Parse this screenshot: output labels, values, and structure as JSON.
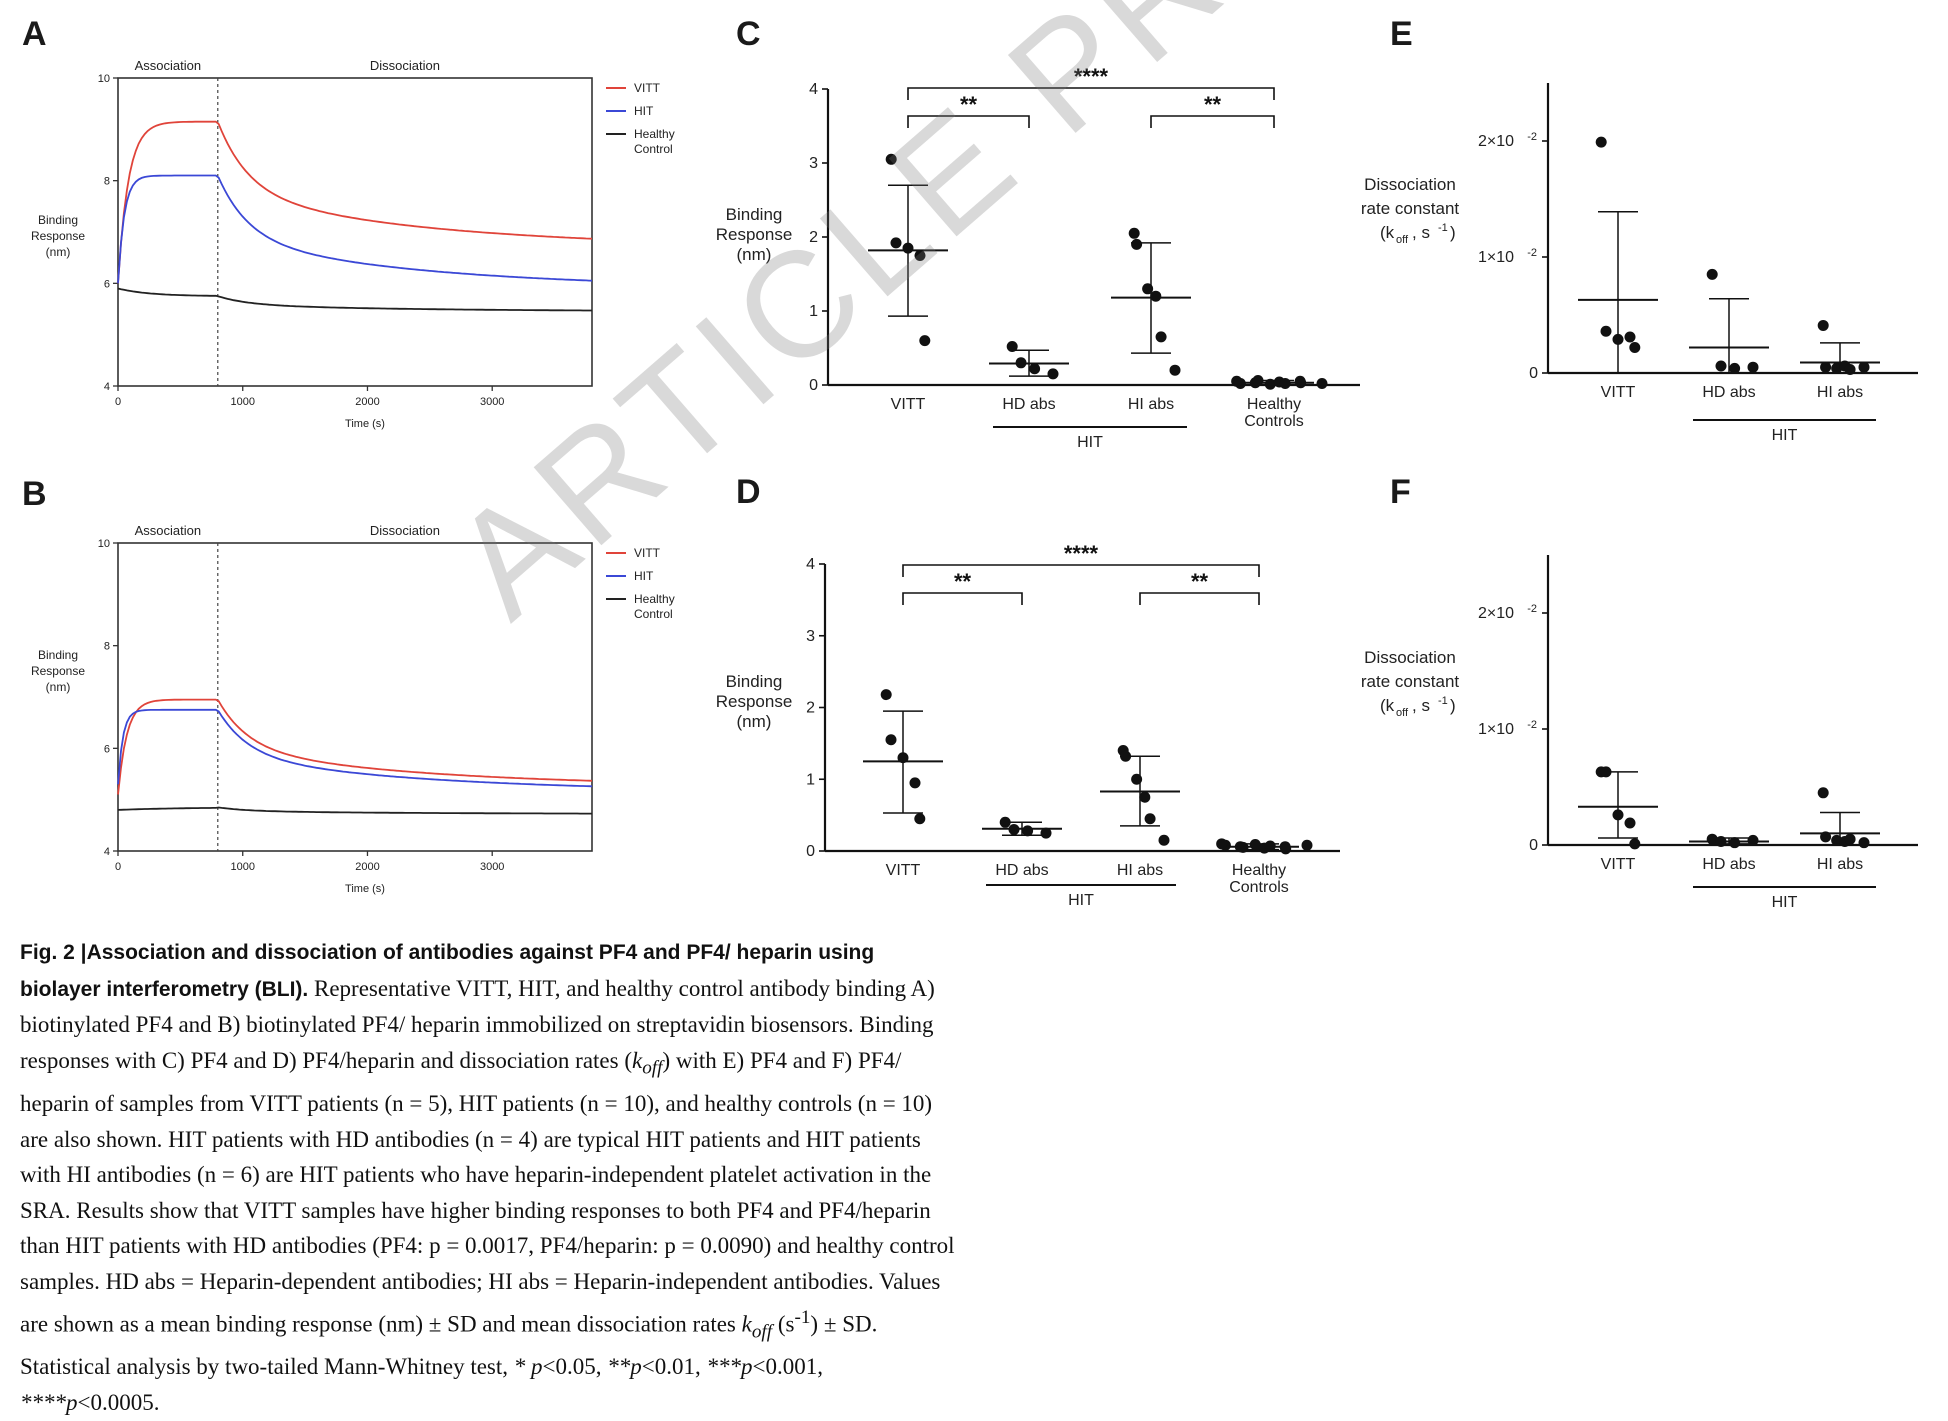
{
  "figure": {
    "panel_labels": [
      "A",
      "B",
      "C",
      "D",
      "E",
      "F"
    ],
    "caption": {
      "fig_label": "Fig. 2 |",
      "title": "Association and dissociation of antibodies against PF4 and PF4/ heparin using biolayer interferometry (BLI).",
      "part1": " Representative VITT, HIT, and healthy control antibody binding A) biotinylated PF4 and B) biotinylated PF4/ heparin immobilized on streptavidin biosensors. Binding responses with C) PF4 and D) PF4/heparin and dissociation rates (",
      "koff_k": "k",
      "koff_sub": "off",
      "part2": ") with E) PF4 and F) PF4/ heparin of samples from VITT patients (n = 5), HIT patients (n = 10), and healthy controls (n = 10) are also shown. HIT patients with HD antibodies (n = 4) are typical HIT patients and HIT patients with HI antibodies (n = 6) are HIT patients who have heparin-independent platelet activation in the SRA. Results show that VITT samples have higher binding responses to both PF4 and PF4/heparin than HIT patients with HD antibodies (PF4: p = 0.0017, PF4/heparin: p = 0.0090) and healthy control samples. HD abs = Heparin-dependent antibodies; HI abs = Heparin-independent antibodies. Values are shown as a mean binding response (nm) ± SD and mean dissociation rates ",
      "part3_unit": " (s",
      "part3_sup": "-1",
      "part3_end": ") ± SD. Statistical analysis by two-tailed Mann-Whitney test, ",
      "sig1": "* p",
      "sig1v": "<0.05, ",
      "sig2": "**p",
      "sig2v": "<0.01, ",
      "sig3": "***p",
      "sig3v": "<0.001, ",
      "sig4": "****p",
      "sig4v": "<0.0005."
    },
    "watermark": "ARTICLE PREVIEW"
  },
  "chart_data": [
    {
      "panel": "A",
      "type": "line",
      "phases": [
        "Association",
        "Dissociation"
      ],
      "xlabel": "Time (s)",
      "ylabel": [
        "Binding",
        "Response",
        "(nm)"
      ],
      "xlim": [
        0,
        3800
      ],
      "ylim": [
        4,
        10
      ],
      "xticks": [
        0,
        1000,
        2000,
        3000
      ],
      "yticks": [
        4,
        6,
        8,
        10
      ],
      "switch_time": 800,
      "legend": [
        {
          "name": "VITT",
          "lines": [
            "VITT"
          ],
          "color": "#e0443a"
        },
        {
          "name": "HIT",
          "lines": [
            "HIT"
          ],
          "color": "#3b48d6"
        },
        {
          "name": "Healthy Control",
          "lines": [
            "Healthy",
            "Control"
          ],
          "color": "#222222"
        }
      ],
      "series": [
        {
          "name": "VITT",
          "color": "#e0443a",
          "baseline": 6.0,
          "plateau": 9.15,
          "end": 6.7,
          "rate": 0.012
        },
        {
          "name": "HIT",
          "color": "#3b48d6",
          "baseline": 6.0,
          "plateau": 8.1,
          "end": 5.9,
          "rate": 0.02
        },
        {
          "name": "Healthy Control",
          "color": "#222222",
          "baseline": 5.9,
          "plateau": 5.75,
          "end": 5.45,
          "rate": 0.004
        }
      ]
    },
    {
      "panel": "B",
      "type": "line",
      "phases": [
        "Association",
        "Dissociation"
      ],
      "xlabel": "Time (s)",
      "ylabel": [
        "Binding",
        "Response",
        "(nm)"
      ],
      "xlim": [
        0,
        3800
      ],
      "ylim": [
        4,
        10
      ],
      "xticks": [
        0,
        1000,
        2000,
        3000
      ],
      "yticks": [
        4,
        6,
        8,
        10
      ],
      "switch_time": 800,
      "legend": [
        {
          "name": "VITT",
          "lines": [
            "VITT"
          ],
          "color": "#e0443a"
        },
        {
          "name": "HIT",
          "lines": [
            "HIT"
          ],
          "color": "#3b48d6"
        },
        {
          "name": "Healthy Control",
          "lines": [
            "Healthy",
            "Control"
          ],
          "color": "#222222"
        }
      ],
      "series": [
        {
          "name": "VITT",
          "color": "#e0443a",
          "baseline": 5.1,
          "plateau": 6.95,
          "end": 5.25,
          "rate": 0.014
        },
        {
          "name": "HIT",
          "color": "#3b48d6",
          "baseline": 5.3,
          "plateau": 6.75,
          "end": 5.15,
          "rate": 0.025
        },
        {
          "name": "Healthy Control",
          "color": "#222222",
          "baseline": 4.8,
          "plateau": 4.85,
          "end": 4.72,
          "rate": 0.002
        }
      ]
    },
    {
      "panel": "C",
      "type": "scatter",
      "ylabel": [
        "Binding",
        "Response",
        "(nm)"
      ],
      "ylim": [
        0,
        4
      ],
      "yticks": [
        "0",
        "1",
        "2",
        "3",
        "4"
      ],
      "ytick_values": [
        0,
        1,
        2,
        3,
        4
      ],
      "categories": [
        {
          "label": [
            "VITT"
          ],
          "mean": 1.82,
          "sd_low": 0.93,
          "sd_high": 2.7,
          "points": [
            3.05,
            1.92,
            1.85,
            1.75,
            0.6
          ]
        },
        {
          "label": [
            "HD abs"
          ],
          "mean": 0.29,
          "sd_low": 0.12,
          "sd_high": 0.47,
          "points": [
            0.52,
            0.3,
            0.22,
            0.15
          ]
        },
        {
          "label": [
            "HI abs"
          ],
          "mean": 1.18,
          "sd_low": 0.43,
          "sd_high": 1.92,
          "points": [
            2.05,
            1.9,
            1.3,
            1.2,
            0.65,
            0.2
          ]
        },
        {
          "label": [
            "Healthy",
            "Controls"
          ],
          "mean": 0.03,
          "sd_low": 0.0,
          "sd_high": 0.06,
          "points": [
            0.02,
            0.05,
            0.03,
            0.06,
            0.01,
            0.04,
            0.02,
            0.03,
            0.05,
            0.02
          ]
        }
      ],
      "group_label": "HIT",
      "group_from": 1,
      "group_to": 2,
      "brackets": [
        {
          "from": 0,
          "to": 3,
          "label": "****"
        },
        {
          "from": 0,
          "to": 1,
          "label": "**"
        },
        {
          "from": 2,
          "to": 3,
          "label": "**"
        }
      ]
    },
    {
      "panel": "D",
      "type": "scatter",
      "ylabel": [
        "Binding",
        "Response",
        "(nm)"
      ],
      "ylim": [
        0,
        4
      ],
      "yticks": [
        "0",
        "1",
        "2",
        "3",
        "4"
      ],
      "ytick_values": [
        0,
        1,
        2,
        3,
        4
      ],
      "categories": [
        {
          "label": [
            "VITT"
          ],
          "mean": 1.25,
          "sd_low": 0.53,
          "sd_high": 1.95,
          "points": [
            2.18,
            1.55,
            1.3,
            0.95,
            0.45
          ]
        },
        {
          "label": [
            "HD abs"
          ],
          "mean": 0.31,
          "sd_low": 0.22,
          "sd_high": 0.4,
          "points": [
            0.4,
            0.3,
            0.28,
            0.25
          ]
        },
        {
          "label": [
            "HI abs"
          ],
          "mean": 0.83,
          "sd_low": 0.35,
          "sd_high": 1.32,
          "points": [
            1.4,
            1.32,
            1.0,
            0.75,
            0.45,
            0.15
          ]
        },
        {
          "label": [
            "Healthy",
            "Controls"
          ],
          "mean": 0.06,
          "sd_low": 0.02,
          "sd_high": 0.1,
          "points": [
            0.08,
            0.1,
            0.06,
            0.05,
            0.09,
            0.04,
            0.07,
            0.03,
            0.06,
            0.08
          ]
        }
      ],
      "group_label": "HIT",
      "group_from": 1,
      "group_to": 2,
      "brackets": [
        {
          "from": 0,
          "to": 3,
          "label": "****"
        },
        {
          "from": 0,
          "to": 1,
          "label": "**"
        },
        {
          "from": 2,
          "to": 3,
          "label": "**"
        }
      ]
    },
    {
      "panel": "E",
      "type": "scatter",
      "ylabel": [
        "Dissociation",
        "rate constant",
        "(k",
        "off",
        ", s",
        "-1",
        ")"
      ],
      "ylim": [
        0,
        0.025
      ],
      "ytick_values": [
        0,
        0.01,
        0.02
      ],
      "yticks": [
        "0",
        "1×10",
        "2×10"
      ],
      "ytick_exp": [
        "",
        "-2",
        "-2"
      ],
      "categories": [
        {
          "label": [
            "VITT"
          ],
          "mean": 0.0063,
          "sd_low": 0.0,
          "sd_high": 0.0139,
          "points": [
            0.0199,
            0.0036,
            0.0029,
            0.0031,
            0.0022
          ]
        },
        {
          "label": [
            "HD abs"
          ],
          "mean": 0.0022,
          "sd_low": 0.0,
          "sd_high": 0.0064,
          "points": [
            0.0085,
            0.0006,
            0.0004,
            0.0005
          ]
        },
        {
          "label": [
            "HI abs"
          ],
          "mean": 0.0009,
          "sd_low": 0.0,
          "sd_high": 0.0026,
          "points": [
            0.0041,
            0.0005,
            0.0004,
            0.0006,
            0.0003,
            0.0005
          ]
        }
      ],
      "group_label": "HIT",
      "group_from": 1,
      "group_to": 2,
      "brackets": []
    },
    {
      "panel": "F",
      "type": "scatter",
      "ylabel": [
        "Dissociation",
        "rate constant",
        "(k",
        "off",
        ", s",
        "-1",
        ")"
      ],
      "ylim": [
        0,
        0.025
      ],
      "ytick_values": [
        0,
        0.01,
        0.02
      ],
      "yticks": [
        "0",
        "1×10",
        "2×10"
      ],
      "ytick_exp": [
        "",
        "-2",
        "-2"
      ],
      "categories": [
        {
          "label": [
            "VITT"
          ],
          "mean": 0.0033,
          "sd_low": 0.0006,
          "sd_high": 0.0063,
          "points": [
            0.0063,
            0.0063,
            0.0026,
            0.0019,
            0.0001
          ]
        },
        {
          "label": [
            "HD abs"
          ],
          "mean": 0.0003,
          "sd_low": 0.0001,
          "sd_high": 0.0006,
          "points": [
            0.0005,
            0.0003,
            0.0002,
            0.0004
          ]
        },
        {
          "label": [
            "HI abs"
          ],
          "mean": 0.001,
          "sd_low": 0.0,
          "sd_high": 0.0028,
          "points": [
            0.0045,
            0.0007,
            0.0004,
            0.0003,
            0.0005,
            0.0002
          ]
        }
      ],
      "group_label": "HIT",
      "group_from": 1,
      "group_to": 2,
      "brackets": []
    }
  ]
}
